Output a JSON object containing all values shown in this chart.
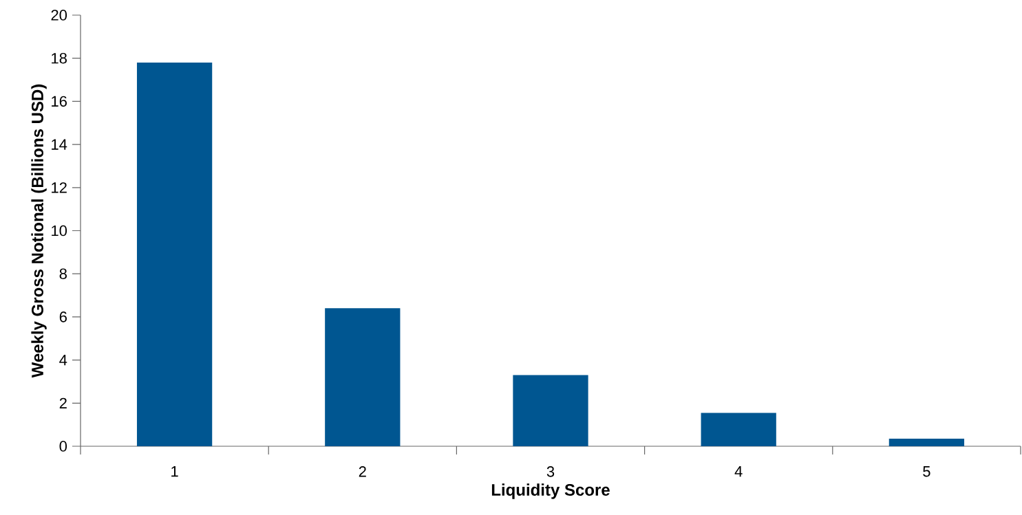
{
  "chart_data": {
    "type": "bar",
    "xlabel": "Liquidity Score",
    "ylabel": "Weekly Gross Notional (Billions USD)",
    "categories": [
      "1",
      "2",
      "3",
      "4",
      "5"
    ],
    "values": [
      17.8,
      6.4,
      3.3,
      1.55,
      0.35
    ],
    "color": "#005691",
    "ylim": [
      0,
      20
    ],
    "yticks": [
      0,
      2,
      4,
      6,
      8,
      10,
      12,
      14,
      16,
      18,
      20
    ]
  }
}
